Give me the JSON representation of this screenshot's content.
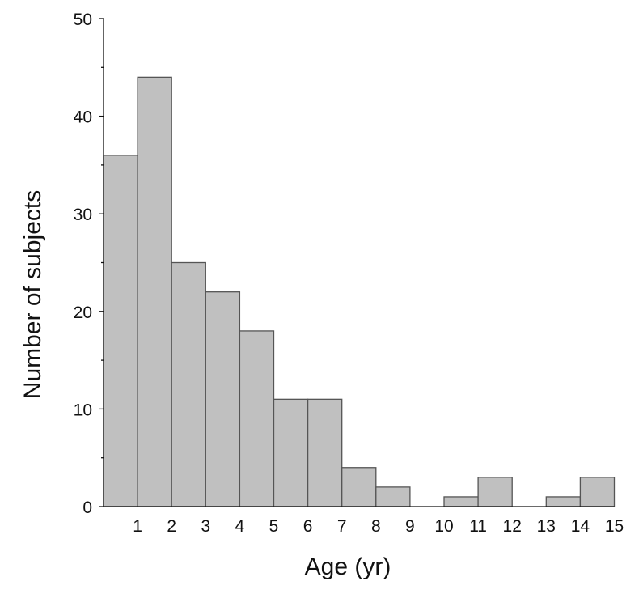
{
  "chart_data": {
    "type": "bar",
    "title": "",
    "xlabel": "Age (yr)",
    "ylabel": "Number of subjects",
    "ylim": [
      0,
      50
    ],
    "yticks": [
      0,
      10,
      20,
      30,
      40,
      50
    ],
    "xticks": [
      "1",
      "2",
      "3",
      "4",
      "5",
      "6",
      "7",
      "8",
      "9",
      "10",
      "11",
      "12",
      "13",
      "14",
      "15"
    ],
    "bins": [
      "0-1",
      "1-2",
      "2-3",
      "3-4",
      "4-5",
      "5-6",
      "6-7",
      "7-8",
      "8-9",
      "9-10",
      "10-11",
      "11-12",
      "12-13",
      "13-14",
      "14-15"
    ],
    "values": [
      36,
      44,
      25,
      22,
      18,
      11,
      11,
      4,
      2,
      0,
      1,
      3,
      0,
      1,
      3
    ],
    "bar_color": "#c0c0c0",
    "grid": false,
    "legend": "none"
  }
}
